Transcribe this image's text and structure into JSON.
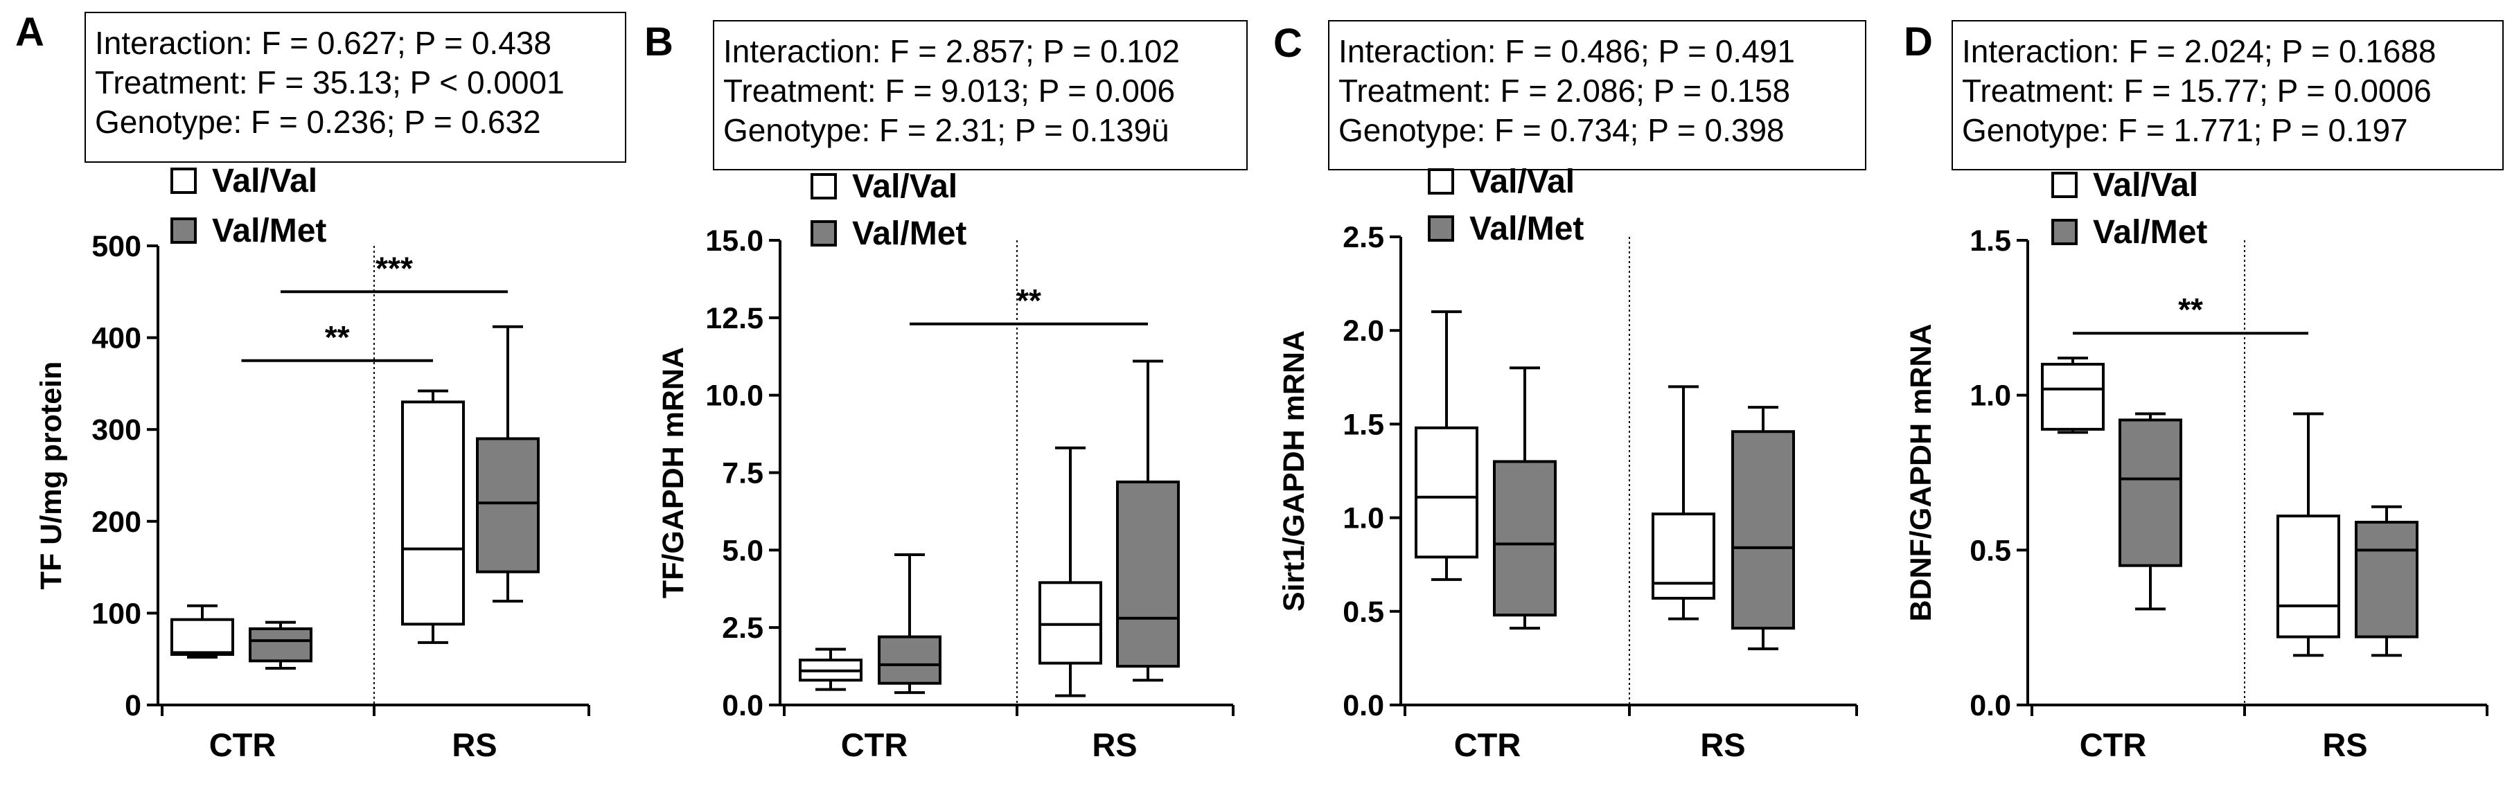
{
  "chart_data": [
    {
      "panel": "A",
      "type": "boxplot",
      "ylabel": "TF U/mg protein",
      "ylim": [
        0,
        500
      ],
      "yticks": [
        "0",
        "100",
        "200",
        "300",
        "400",
        "500"
      ],
      "yticks_values": [
        0,
        100,
        200,
        300,
        400,
        500
      ],
      "categories": [
        "CTR",
        "RS"
      ],
      "stats": [
        "Interaction: F = 0.627; P = 0.438",
        "Treatment: F = 35.13; P < 0.0001",
        "Genotype: F = 0.236; P = 0.632"
      ],
      "legend": [
        "Val/Val",
        "Val/Met"
      ],
      "series": [
        {
          "name": "Val/Val",
          "color": "#ffffff",
          "boxes": [
            {
              "group": "CTR",
              "min": 52,
              "q1": 55,
              "median": 57,
              "q3": 93,
              "max": 108
            },
            {
              "group": "RS",
              "min": 68,
              "q1": 88,
              "median": 170,
              "q3": 330,
              "max": 342
            }
          ]
        },
        {
          "name": "Val/Met",
          "color": "#7f7f7f",
          "boxes": [
            {
              "group": "CTR",
              "min": 40,
              "q1": 48,
              "median": 70,
              "q3": 83,
              "max": 90
            },
            {
              "group": "RS",
              "min": 113,
              "q1": 145,
              "median": 220,
              "q3": 290,
              "max": 412
            }
          ]
        }
      ],
      "significance": [
        {
          "label": "**",
          "y": 375,
          "from": "CTR-center",
          "to": "RS-ValVal"
        },
        {
          "label": "***",
          "y": 450,
          "from": "CTR-ValMet",
          "to": "RS-ValMet"
        }
      ]
    },
    {
      "panel": "B",
      "type": "boxplot",
      "ylabel": "TF/GAPDH mRNA",
      "ylim": [
        0,
        15
      ],
      "yticks": [
        "0.0",
        "2.5",
        "5.0",
        "7.5",
        "10.0",
        "12.5",
        "15.0"
      ],
      "yticks_values": [
        0,
        2.5,
        5,
        7.5,
        10,
        12.5,
        15
      ],
      "categories": [
        "CTR",
        "RS"
      ],
      "stats": [
        "Interaction: F = 2.857; P = 0.102",
        "Treatment: F = 9.013; P = 0.006",
        "Genotype: F = 2.31; P = 0.139ü"
      ],
      "legend": [
        "Val/Val",
        "Val/Met"
      ],
      "series": [
        {
          "name": "Val/Val",
          "color": "#ffffff",
          "boxes": [
            {
              "group": "CTR",
              "min": 0.5,
              "q1": 0.8,
              "median": 1.1,
              "q3": 1.45,
              "max": 1.8
            },
            {
              "group": "RS",
              "min": 0.3,
              "q1": 1.35,
              "median": 2.6,
              "q3": 3.95,
              "max": 8.3
            }
          ]
        },
        {
          "name": "Val/Met",
          "color": "#7f7f7f",
          "boxes": [
            {
              "group": "CTR",
              "min": 0.4,
              "q1": 0.7,
              "median": 1.3,
              "q3": 2.2,
              "max": 4.85
            },
            {
              "group": "RS",
              "min": 0.8,
              "q1": 1.25,
              "median": 2.8,
              "q3": 7.2,
              "max": 11.1
            }
          ]
        }
      ],
      "significance": [
        {
          "label": "**",
          "y": 12.3,
          "from": "CTR-ValMet",
          "to": "RS-ValMet"
        }
      ]
    },
    {
      "panel": "C",
      "type": "boxplot",
      "ylabel": "Sirt1/GAPDH mRNA",
      "ylim": [
        0,
        2.5
      ],
      "yticks": [
        "0.0",
        "0.5",
        "1.0",
        "1.5",
        "2.0",
        "2.5"
      ],
      "yticks_values": [
        0,
        0.5,
        1,
        1.5,
        2,
        2.5
      ],
      "categories": [
        "CTR",
        "RS"
      ],
      "stats": [
        "Interaction: F = 0.486; P = 0.491",
        "Treatment: F = 2.086; P = 0.158",
        "Genotype: F = 0.734; P = 0.398"
      ],
      "legend": [
        "Val/Val",
        "Val/Met"
      ],
      "series": [
        {
          "name": "Val/Val",
          "color": "#ffffff",
          "boxes": [
            {
              "group": "CTR",
              "min": 0.67,
              "q1": 0.79,
              "median": 1.11,
              "q3": 1.48,
              "max": 2.1
            },
            {
              "group": "RS",
              "min": 0.46,
              "q1": 0.57,
              "median": 0.65,
              "q3": 1.02,
              "max": 1.7
            }
          ]
        },
        {
          "name": "Val/Met",
          "color": "#7f7f7f",
          "boxes": [
            {
              "group": "CTR",
              "min": 0.41,
              "q1": 0.48,
              "median": 0.86,
              "q3": 1.3,
              "max": 1.8
            },
            {
              "group": "RS",
              "min": 0.3,
              "q1": 0.41,
              "median": 0.84,
              "q3": 1.46,
              "max": 1.59
            }
          ]
        }
      ],
      "significance": []
    },
    {
      "panel": "D",
      "type": "boxplot",
      "ylabel": "BDNF/GAPDH mRNA",
      "ylim": [
        0,
        1.5
      ],
      "yticks": [
        "0.0",
        "0.5",
        "1.0",
        "1.5"
      ],
      "yticks_values": [
        0,
        0.5,
        1,
        1.5
      ],
      "categories": [
        "CTR",
        "RS"
      ],
      "stats": [
        "Interaction: F = 2.024; P = 0.1688",
        "Treatment: F = 15.77; P = 0.0006",
        "Genotype: F = 1.771; P = 0.197"
      ],
      "legend": [
        "Val/Val",
        "Val/Met"
      ],
      "series": [
        {
          "name": "Val/Val",
          "color": "#ffffff",
          "boxes": [
            {
              "group": "CTR",
              "min": 0.88,
              "q1": 0.89,
              "median": 1.02,
              "q3": 1.1,
              "max": 1.12
            },
            {
              "group": "RS",
              "min": 0.16,
              "q1": 0.22,
              "median": 0.32,
              "q3": 0.61,
              "max": 0.94
            }
          ]
        },
        {
          "name": "Val/Met",
          "color": "#7f7f7f",
          "boxes": [
            {
              "group": "CTR",
              "min": 0.31,
              "q1": 0.45,
              "median": 0.73,
              "q3": 0.92,
              "max": 0.94
            },
            {
              "group": "RS",
              "min": 0.16,
              "q1": 0.22,
              "median": 0.5,
              "q3": 0.59,
              "max": 0.64
            }
          ]
        }
      ],
      "significance": [
        {
          "label": "**",
          "y": 1.2,
          "from": "CTR-ValVal",
          "to": "RS-ValVal"
        }
      ]
    }
  ]
}
